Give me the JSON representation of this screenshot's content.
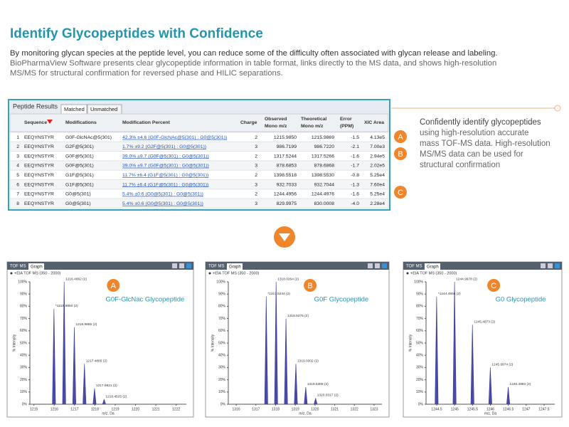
{
  "header": {
    "title": "Identify Glycopeptides with Confidence",
    "intro": [
      "By monitoring glycan species at the peptide level, you can reduce some of the difficulty often associated with glycan release and labeling.",
      "BioPharmaView Software presents clear glycopeptide information in table format, links directly to the MS data, and shows high-resolution",
      "MS/MS for structural confirmation for reversed phase and HILIC separations."
    ]
  },
  "table": {
    "panel_title": "Peptide Results",
    "tabs": [
      "Matched",
      "Unmatched"
    ],
    "columns": [
      [
        ""
      ],
      [
        "Sequence"
      ],
      [
        "Modifications"
      ],
      [
        "Modification Percent"
      ],
      [
        "Charge"
      ],
      [
        "Observed",
        "Mono m/z"
      ],
      [
        "Theoretical",
        "Mono m/z"
      ],
      [
        "Error",
        "(PPM)"
      ],
      [
        "XIC Area"
      ]
    ],
    "rows": [
      [
        "1",
        "EEQYNSTYR",
        "G0F-GlcNAc@5(301)",
        "42.3% ±4.6 (G0F-GlcNAc@5(301) : G0@5(301))",
        "2",
        "1215.9850",
        "1215.9869",
        "-1.5",
        "4.13e5"
      ],
      [
        "2",
        "EEQYNSTYR",
        "G2F@5(301)",
        "1.7% ±9.2 (G2F@5(301) : G0@5(301))",
        "3",
        "986.7199",
        "986.7220",
        "-2.1",
        "7.00e3"
      ],
      [
        "3",
        "EEQYNSTYR",
        "G0F@5(301)",
        "39.0% ±9.7 (G0F@5(301) : G0@5(301))",
        "2",
        "1317.5244",
        "1317.5266",
        "-1.6",
        "2.94e5"
      ],
      [
        "4",
        "EEQYNSTYR",
        "G0F@5(301)",
        "39.0% ±9.7 (G0F@5(301) : G0@5(301))",
        "3",
        "878.6853",
        "878.6868",
        "-1.7",
        "2.02e5"
      ],
      [
        "5",
        "EEQYNSTYR",
        "G1F@5(301)",
        "11.7% ±6.4 (G1F@5(301) : G0@5(301))",
        "2",
        "1398.5518",
        "1398.5530",
        "-0.8",
        "5.25e4"
      ],
      [
        "6",
        "EEQYNSTYR",
        "G1F@5(301)",
        "11.7% ±6.4 (G1F@5(301) : G0@5(301))",
        "3",
        "932.7033",
        "932.7044",
        "-1.3",
        "7.60e4"
      ],
      [
        "7",
        "EEQYNSTYR",
        "G0@5(301)",
        "5.4% ±0.6 (G0@5(301) : G0@5(301))",
        "2",
        "1244.4956",
        "1244.4976",
        "-1.6",
        "5.25e4"
      ],
      [
        "8",
        "EEQYNSTYR",
        "G0@5(301)",
        "5.4% ±0.6 (G0@5(301) : G0@5(301))",
        "3",
        "829.9975",
        "830.0008",
        "-4.0",
        "2.28e4"
      ]
    ]
  },
  "callout": {
    "lines": [
      "Confidently identify glycopeptides",
      "using high-resolution accurate",
      "mass TOF-MS data. High-resolution",
      "MS/MS data can be used for",
      "structural confirmation"
    ],
    "badges": [
      "A",
      "B",
      "C"
    ]
  },
  "panels": [
    {
      "tabs": [
        "TOF MS",
        "Graph"
      ],
      "subtitle": "+EIA TOF MS (350 - 2000)",
      "y_label": "% Intensity",
      "x_label": "m/z, Da",
      "badge": "A",
      "label": "G0F-GlcNac Glycopeptide",
      "xlim": [
        1214.8,
        1222.5
      ],
      "xticks": [
        1215,
        1216,
        1217,
        1218,
        1219,
        1220,
        1221,
        1222
      ],
      "ylim": [
        0,
        100
      ],
      "yticks": [
        {
          "value": 0,
          "label": "0%"
        },
        {
          "value": 10,
          "label": "10%"
        },
        {
          "value": 20,
          "label": "20%"
        },
        {
          "value": 30,
          "label": "30%"
        },
        {
          "value": 40,
          "label": "40%"
        },
        {
          "value": 50,
          "label": "50%"
        },
        {
          "value": 60,
          "label": "60%"
        },
        {
          "value": 70,
          "label": "70%"
        },
        {
          "value": 80,
          "label": "80%"
        },
        {
          "value": 90,
          "label": "90%"
        },
        {
          "value": 100,
          "label": "100%"
        }
      ],
      "peaks": [
        {
          "mz": 1215.985,
          "intensity": 78,
          "label": "*1215.9850 (2)"
        },
        {
          "mz": 1216.4862,
          "intensity": 100,
          "label": "1216.4862 (2)"
        },
        {
          "mz": 1216.9865,
          "intensity": 63,
          "label": "1216.9865 (2)"
        },
        {
          "mz": 1217.4865,
          "intensity": 33,
          "label": "1217.4865 (2)"
        },
        {
          "mz": 1217.9821,
          "intensity": 13,
          "label": "1217.9821 (2)"
        },
        {
          "mz": 1218.4525,
          "intensity": 4,
          "label": "1218.4525 (2)"
        }
      ]
    },
    {
      "tabs": [
        "TOF MS",
        "Graph"
      ],
      "subtitle": "+EIA TOF MS (350 - 2000)",
      "y_label": "% Intensity",
      "x_label": "m/z, Da",
      "badge": "B",
      "label": "G0F Glycopeptide",
      "xlim": [
        1315.6,
        1323.4
      ],
      "xticks": [
        1316,
        1317,
        1318,
        1319,
        1320,
        1321,
        1322,
        1323
      ],
      "ylim": [
        0,
        100
      ],
      "yticks": [
        {
          "value": 0,
          "label": "0%"
        },
        {
          "value": 10,
          "label": "10%"
        },
        {
          "value": 20,
          "label": "20%"
        },
        {
          "value": 30,
          "label": "30%"
        },
        {
          "value": 40,
          "label": "40%"
        },
        {
          "value": 50,
          "label": "50%"
        },
        {
          "value": 60,
          "label": "60%"
        },
        {
          "value": 70,
          "label": "70%"
        },
        {
          "value": 80,
          "label": "80%"
        },
        {
          "value": 90,
          "label": "90%"
        },
        {
          "value": 100,
          "label": "100%"
        }
      ],
      "peaks": [
        {
          "mz": 1317.5244,
          "intensity": 88,
          "label": "*1317.5244 (2)"
        },
        {
          "mz": 1318.0264,
          "intensity": 100,
          "label": "1318.0264 (2)"
        },
        {
          "mz": 1318.5276,
          "intensity": 70,
          "label": "1318.5276 (2)"
        },
        {
          "mz": 1319.0302,
          "intensity": 33,
          "label": "1319.0302 (2)"
        },
        {
          "mz": 1319.5306,
          "intensity": 14,
          "label": "1319.5306 (2)"
        },
        {
          "mz": 1320.0317,
          "intensity": 5,
          "label": "1320.0317 (2)"
        }
      ]
    },
    {
      "tabs": [
        "TOF MS",
        "Graph"
      ],
      "subtitle": "+EIA TOF MS (350 - 2000)",
      "y_label": "% Intensity",
      "x_label": "m/z, Da",
      "badge": "C",
      "label": "G0 Glycopeptide",
      "xlim": [
        1244.2,
        1247.8
      ],
      "xticks": [
        1244.5,
        1245,
        1245.5,
        1246,
        1246.5,
        1247,
        1247.5
      ],
      "ylim": [
        0,
        100
      ],
      "yticks": [
        {
          "value": 0,
          "label": "0%"
        },
        {
          "value": 10,
          "label": "10%"
        },
        {
          "value": 20,
          "label": "20%"
        },
        {
          "value": 30,
          "label": "30%"
        },
        {
          "value": 40,
          "label": "40%"
        },
        {
          "value": 50,
          "label": "50%"
        },
        {
          "value": 60,
          "label": "60%"
        },
        {
          "value": 70,
          "label": "70%"
        },
        {
          "value": 80,
          "label": "80%"
        },
        {
          "value": 90,
          "label": "90%"
        },
        {
          "value": 100,
          "label": "100%"
        }
      ],
      "peaks": [
        {
          "mz": 1244.4956,
          "intensity": 88,
          "label": "*1244.4956 (2)"
        },
        {
          "mz": 1244.9978,
          "intensity": 100,
          "label": "1244.9978 (2)"
        },
        {
          "mz": 1245.4973,
          "intensity": 65,
          "label": "1245.4973 (2)"
        },
        {
          "mz": 1245.9974,
          "intensity": 30,
          "label": "1245.9974 (2)"
        },
        {
          "mz": 1246.4983,
          "intensity": 14,
          "label": "1246.4983 (2)"
        }
      ]
    }
  ]
}
